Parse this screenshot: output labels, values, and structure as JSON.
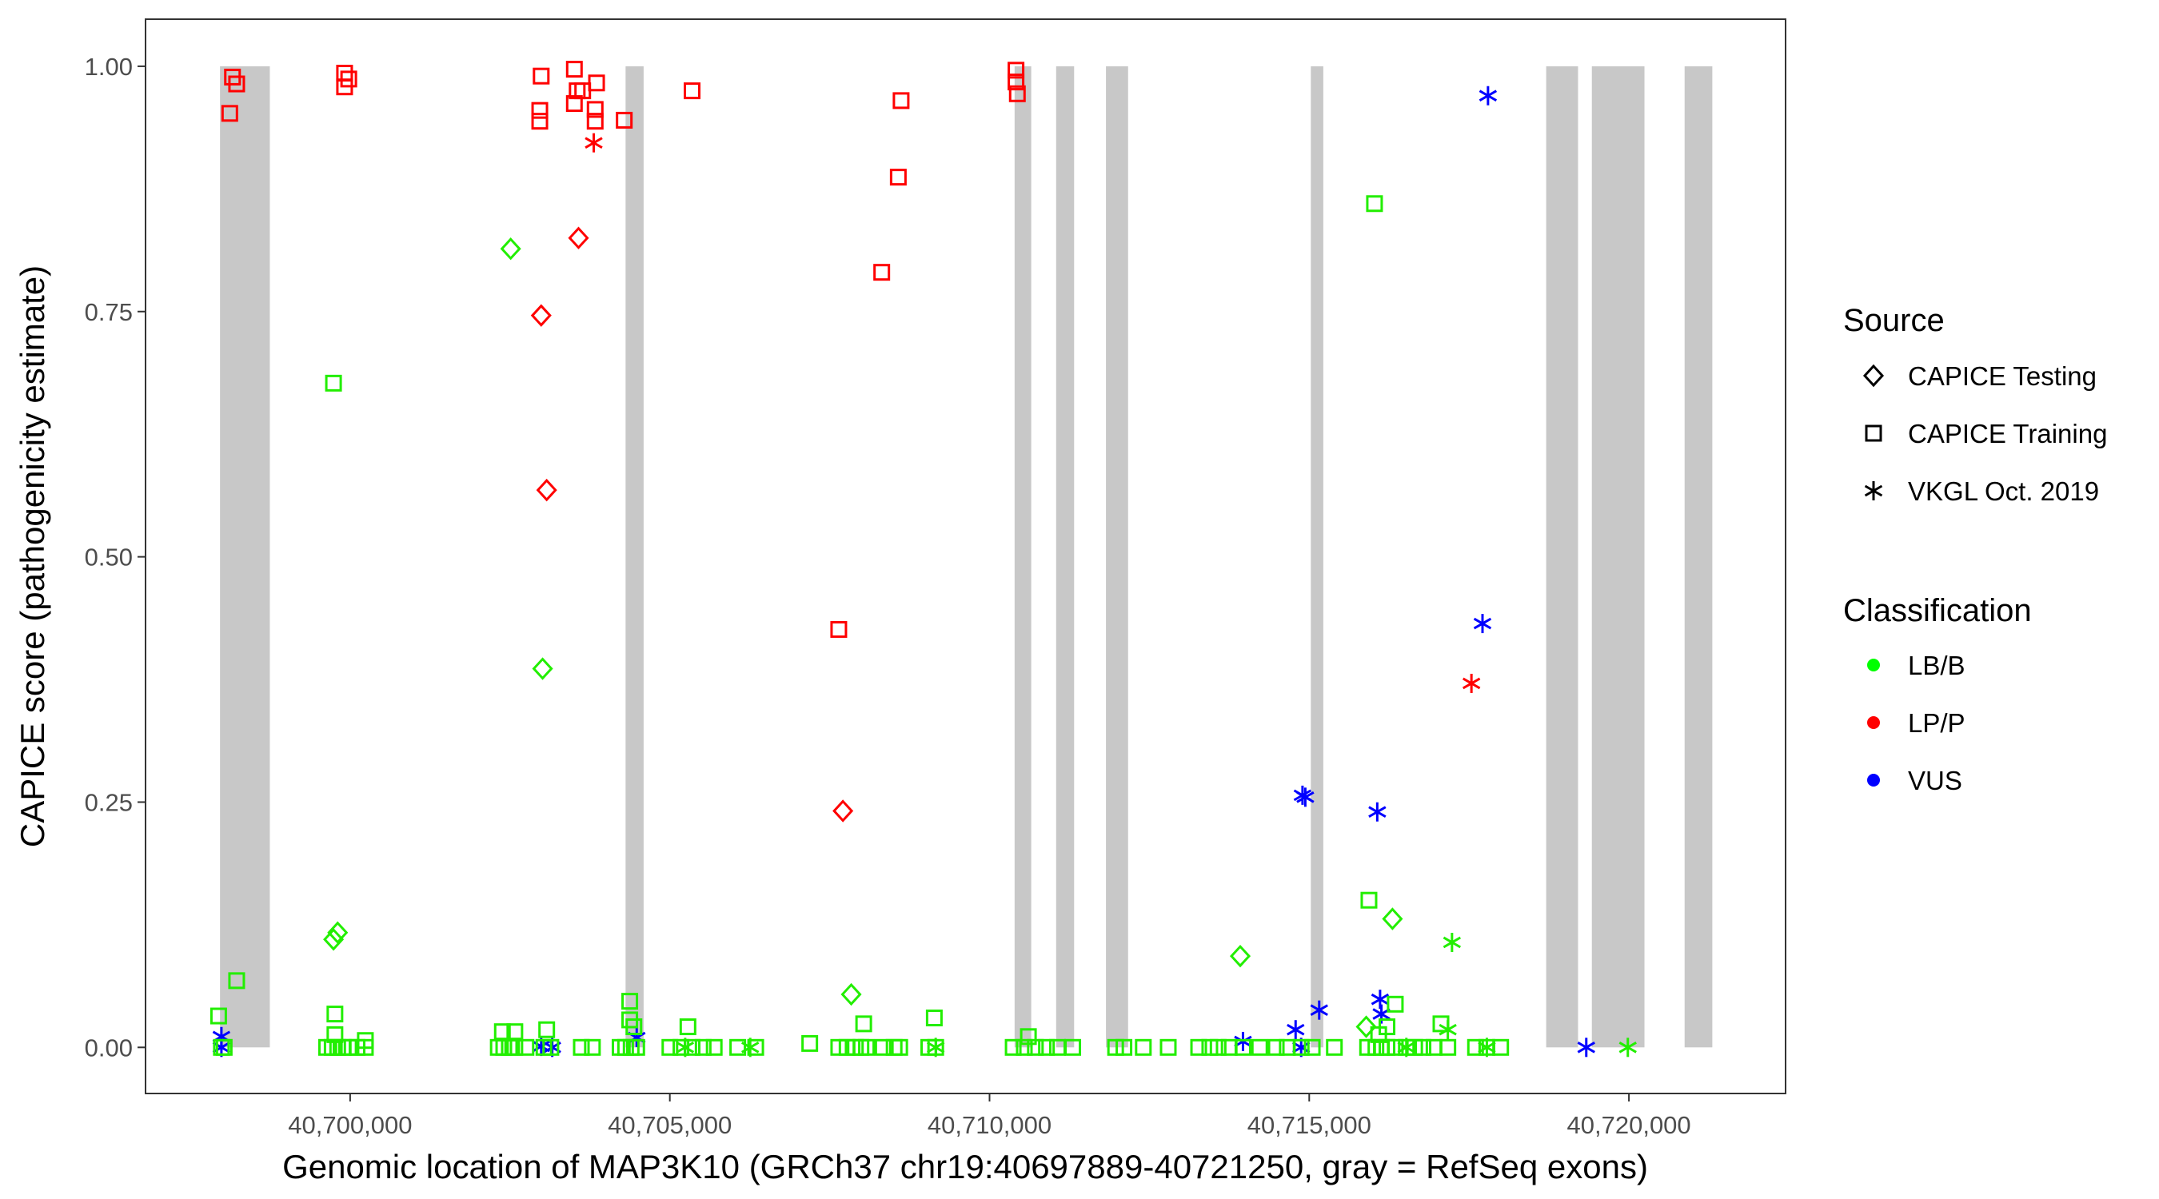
{
  "chart_data": {
    "type": "scatter",
    "title": "",
    "xlabel": "Genomic location of MAP3K10 (GRCh37 chr19:40697889-40721250, gray = RefSeq exons)",
    "ylabel": "CAPICE score (pathogenicity estimate)",
    "xlim": [
      40696800,
      40722450
    ],
    "ylim": [
      -0.047,
      1.048
    ],
    "xticks": [
      40700000,
      40705000,
      40710000,
      40715000,
      40720000
    ],
    "xtick_labels": [
      "40,700,000",
      "40,705,000",
      "40,710,000",
      "40,715,000",
      "40,720,000"
    ],
    "yticks": [
      0,
      0.25,
      0.5,
      0.75,
      1.0
    ],
    "ytick_labels": [
      "0.00",
      "0.25",
      "0.50",
      "0.75",
      "1.00"
    ],
    "grid": false,
    "exons": [
      [
        40697965,
        40698744
      ],
      [
        40704308,
        40704590
      ],
      [
        40710392,
        40710652
      ],
      [
        40711042,
        40711323
      ],
      [
        40711821,
        40712167
      ],
      [
        40715025,
        40715220
      ],
      [
        40718706,
        40719204
      ],
      [
        40719420,
        40720243
      ],
      [
        40720871,
        40721304
      ]
    ],
    "legend": {
      "placement": "right",
      "source_title": "Source",
      "source": [
        {
          "key": "testing",
          "label": "CAPICE Testing",
          "shape": "diamond"
        },
        {
          "key": "training",
          "label": "CAPICE Training",
          "shape": "square"
        },
        {
          "key": "vkgl",
          "label": "VKGL Oct. 2019",
          "shape": "asterisk"
        }
      ],
      "class_title": "Classification",
      "classes": [
        {
          "key": "LB/B",
          "label": "LB/B",
          "color": "#00FF00"
        },
        {
          "key": "LP/P",
          "label": "LP/P",
          "color": "#FF0000"
        },
        {
          "key": "VUS",
          "label": "VUS",
          "color": "#0000FF"
        }
      ]
    },
    "colors": {
      "LB/B": "#22ee00",
      "LP/P": "#ff0000",
      "VUS": "#0000ff",
      "exon": "#c8c8c8"
    },
    "points": [
      [
        40698160,
        0.989,
        "training",
        "LP/P"
      ],
      [
        40698225,
        0.982,
        "training",
        "LP/P"
      ],
      [
        40698117,
        0.952,
        "training",
        "LP/P"
      ],
      [
        40699913,
        0.993,
        "training",
        "LP/P"
      ],
      [
        40699978,
        0.987,
        "training",
        "LP/P"
      ],
      [
        40699913,
        0.979,
        "training",
        "LP/P"
      ],
      [
        40702988,
        0.99,
        "training",
        "LP/P"
      ],
      [
        40702966,
        0.955,
        "training",
        "LP/P"
      ],
      [
        40702966,
        0.944,
        "training",
        "LP/P"
      ],
      [
        40703507,
        0.997,
        "training",
        "LP/P"
      ],
      [
        40703551,
        0.975,
        "training",
        "LP/P"
      ],
      [
        40703637,
        0.975,
        "training",
        "LP/P"
      ],
      [
        40703507,
        0.962,
        "training",
        "LP/P"
      ],
      [
        40703854,
        0.983,
        "training",
        "LP/P"
      ],
      [
        40703832,
        0.956,
        "training",
        "LP/P"
      ],
      [
        40703832,
        0.944,
        "training",
        "LP/P"
      ],
      [
        40704287,
        0.945,
        "training",
        "LP/P"
      ],
      [
        40705348,
        0.975,
        "training",
        "LP/P"
      ],
      [
        40708617,
        0.965,
        "training",
        "LP/P"
      ],
      [
        40708573,
        0.887,
        "training",
        "LP/P"
      ],
      [
        40708314,
        0.79,
        "training",
        "LP/P"
      ],
      [
        40707642,
        0.426,
        "training",
        "LP/P"
      ],
      [
        40710414,
        0.996,
        "training",
        "LP/P"
      ],
      [
        40710414,
        0.984,
        "training",
        "LP/P"
      ],
      [
        40710435,
        0.972,
        "training",
        "LP/P"
      ],
      [
        40703572,
        0.825,
        "testing",
        "LP/P"
      ],
      [
        40702988,
        0.746,
        "testing",
        "LP/P"
      ],
      [
        40703074,
        0.568,
        "testing",
        "LP/P"
      ],
      [
        40707707,
        0.241,
        "testing",
        "LP/P"
      ],
      [
        40703810,
        0.922,
        "vkgl",
        "LP/P"
      ],
      [
        40717537,
        0.371,
        "vkgl",
        "LP/P"
      ],
      [
        40717796,
        0.97,
        "vkgl",
        "VUS"
      ],
      [
        40717710,
        0.432,
        "vkgl",
        "VUS"
      ],
      [
        40714895,
        0.257,
        "vkgl",
        "VUS"
      ],
      [
        40714939,
        0.255,
        "vkgl",
        "VUS"
      ],
      [
        40716064,
        0.24,
        "vkgl",
        "VUS"
      ],
      [
        40716108,
        0.049,
        "vkgl",
        "VUS"
      ],
      [
        40716129,
        0.034,
        "vkgl",
        "VUS"
      ],
      [
        40715156,
        0.038,
        "vkgl",
        "VUS"
      ],
      [
        40714787,
        0.018,
        "vkgl",
        "VUS"
      ],
      [
        40714874,
        0.0,
        "vkgl",
        "VUS"
      ],
      [
        40713964,
        0.006,
        "vkgl",
        "VUS"
      ],
      [
        40704482,
        0.01,
        "vkgl",
        "VUS"
      ],
      [
        40702988,
        0.001,
        "vkgl",
        "VUS"
      ],
      [
        40703161,
        0.0,
        "vkgl",
        "VUS"
      ],
      [
        40697987,
        0.011,
        "vkgl",
        "VUS"
      ],
      [
        40697987,
        0.0,
        "vkgl",
        "VUS"
      ],
      [
        40719333,
        0.0,
        "vkgl",
        "VUS"
      ],
      [
        40716021,
        0.86,
        "training",
        "LB/B"
      ],
      [
        40699740,
        0.677,
        "training",
        "LB/B"
      ],
      [
        40715934,
        0.15,
        "training",
        "LB/B"
      ],
      [
        40698225,
        0.068,
        "training",
        "LB/B"
      ],
      [
        40699762,
        0.034,
        "training",
        "LB/B"
      ],
      [
        40697943,
        0.032,
        "training",
        "LB/B"
      ],
      [
        40704373,
        0.047,
        "training",
        "LB/B"
      ],
      [
        40704373,
        0.028,
        "training",
        "LB/B"
      ],
      [
        40704438,
        0.021,
        "training",
        "LB/B"
      ],
      [
        40705283,
        0.021,
        "training",
        "LB/B"
      ],
      [
        40708032,
        0.024,
        "training",
        "LB/B"
      ],
      [
        40709136,
        0.03,
        "training",
        "LB/B"
      ],
      [
        40716346,
        0.044,
        "training",
        "LB/B"
      ],
      [
        40717060,
        0.024,
        "training",
        "LB/B"
      ],
      [
        40710608,
        0.011,
        "training",
        "LB/B"
      ],
      [
        40702381,
        0.016,
        "training",
        "LB/B"
      ],
      [
        40702576,
        0.016,
        "training",
        "LB/B"
      ],
      [
        40703074,
        0.018,
        "training",
        "LB/B"
      ],
      [
        40716216,
        0.021,
        "training",
        "LB/B"
      ],
      [
        40716086,
        0.013,
        "training",
        "LB/B"
      ],
      [
        40700238,
        0.007,
        "training",
        "LB/B"
      ],
      [
        40707188,
        0.004,
        "training",
        "LB/B"
      ],
      [
        40699762,
        0.013,
        "training",
        "LB/B"
      ],
      [
        40697987,
        0,
        "training",
        "LB/B"
      ],
      [
        40698030,
        0,
        "training",
        "LB/B"
      ],
      [
        40699632,
        0,
        "training",
        "LB/B"
      ],
      [
        40699719,
        0,
        "training",
        "LB/B"
      ],
      [
        40699805,
        0,
        "training",
        "LB/B"
      ],
      [
        40699892,
        0,
        "training",
        "LB/B"
      ],
      [
        40699978,
        0,
        "training",
        "LB/B"
      ],
      [
        40700108,
        0,
        "training",
        "LB/B"
      ],
      [
        40700238,
        0,
        "training",
        "LB/B"
      ],
      [
        40702317,
        0,
        "training",
        "LB/B"
      ],
      [
        40702403,
        0,
        "training",
        "LB/B"
      ],
      [
        40702490,
        0,
        "training",
        "LB/B"
      ],
      [
        40702576,
        0,
        "training",
        "LB/B"
      ],
      [
        40702750,
        0,
        "training",
        "LB/B"
      ],
      [
        40703031,
        0,
        "training",
        "LB/B"
      ],
      [
        40703139,
        0,
        "training",
        "LB/B"
      ],
      [
        40703616,
        0,
        "training",
        "LB/B"
      ],
      [
        40703789,
        0,
        "training",
        "LB/B"
      ],
      [
        40704222,
        0,
        "training",
        "LB/B"
      ],
      [
        40704308,
        0,
        "training",
        "LB/B"
      ],
      [
        40704395,
        0,
        "training",
        "LB/B"
      ],
      [
        40704482,
        0,
        "training",
        "LB/B"
      ],
      [
        40705001,
        0,
        "training",
        "LB/B"
      ],
      [
        40705174,
        0,
        "training",
        "LB/B"
      ],
      [
        40705348,
        0,
        "training",
        "LB/B"
      ],
      [
        40705521,
        0,
        "training",
        "LB/B"
      ],
      [
        40705694,
        0,
        "training",
        "LB/B"
      ],
      [
        40706062,
        0,
        "training",
        "LB/B"
      ],
      [
        40706343,
        0,
        "training",
        "LB/B"
      ],
      [
        40707642,
        0,
        "training",
        "LB/B"
      ],
      [
        40707772,
        0,
        "training",
        "LB/B"
      ],
      [
        40707902,
        0,
        "training",
        "LB/B"
      ],
      [
        40707989,
        0,
        "training",
        "LB/B"
      ],
      [
        40708075,
        0,
        "training",
        "LB/B"
      ],
      [
        40708335,
        0,
        "training",
        "LB/B"
      ],
      [
        40708508,
        0,
        "training",
        "LB/B"
      ],
      [
        40708595,
        0,
        "training",
        "LB/B"
      ],
      [
        40709050,
        0,
        "training",
        "LB/B"
      ],
      [
        40709158,
        0,
        "training",
        "LB/B"
      ],
      [
        40710370,
        0,
        "training",
        "LB/B"
      ],
      [
        40710544,
        0,
        "training",
        "LB/B"
      ],
      [
        40710717,
        0,
        "training",
        "LB/B"
      ],
      [
        40710890,
        0,
        "training",
        "LB/B"
      ],
      [
        40711063,
        0,
        "training",
        "LB/B"
      ],
      [
        40711301,
        0,
        "training",
        "LB/B"
      ],
      [
        40711972,
        0,
        "training",
        "LB/B"
      ],
      [
        40712102,
        0,
        "training",
        "LB/B"
      ],
      [
        40712405,
        0,
        "training",
        "LB/B"
      ],
      [
        40712795,
        0,
        "training",
        "LB/B"
      ],
      [
        40713271,
        0,
        "training",
        "LB/B"
      ],
      [
        40713445,
        0,
        "training",
        "LB/B"
      ],
      [
        40713575,
        0,
        "training",
        "LB/B"
      ],
      [
        40713748,
        0,
        "training",
        "LB/B"
      ],
      [
        40713964,
        0,
        "training",
        "LB/B"
      ],
      [
        40714224,
        0,
        "training",
        "LB/B"
      ],
      [
        40714484,
        0,
        "training",
        "LB/B"
      ],
      [
        40714657,
        0,
        "training",
        "LB/B"
      ],
      [
        40714874,
        0,
        "training",
        "LB/B"
      ],
      [
        40715047,
        0,
        "training",
        "LB/B"
      ],
      [
        40715393,
        0,
        "training",
        "LB/B"
      ],
      [
        40715913,
        0,
        "training",
        "LB/B"
      ],
      [
        40716043,
        0,
        "training",
        "LB/B"
      ],
      [
        40716129,
        0,
        "training",
        "LB/B"
      ],
      [
        40716216,
        0,
        "training",
        "LB/B"
      ],
      [
        40716346,
        0,
        "training",
        "LB/B"
      ],
      [
        40716519,
        0,
        "training",
        "LB/B"
      ],
      [
        40716649,
        0,
        "training",
        "LB/B"
      ],
      [
        40716779,
        0,
        "training",
        "LB/B"
      ],
      [
        40716952,
        0,
        "training",
        "LB/B"
      ],
      [
        40717168,
        0,
        "training",
        "LB/B"
      ],
      [
        40717601,
        0,
        "training",
        "LB/B"
      ],
      [
        40717778,
        0,
        "training",
        "LB/B"
      ],
      [
        40717994,
        0,
        "training",
        "LB/B"
      ],
      [
        40702511,
        0.814,
        "testing",
        "LB/B"
      ],
      [
        40703010,
        0.386,
        "testing",
        "LB/B"
      ],
      [
        40699805,
        0.117,
        "testing",
        "LB/B"
      ],
      [
        40699740,
        0.11,
        "testing",
        "LB/B"
      ],
      [
        40707837,
        0.054,
        "testing",
        "LB/B"
      ],
      [
        40713921,
        0.093,
        "testing",
        "LB/B"
      ],
      [
        40716302,
        0.131,
        "testing",
        "LB/B"
      ],
      [
        40715891,
        0.021,
        "testing",
        "LB/B"
      ],
      [
        40717233,
        0.107,
        "vkgl",
        "LB/B"
      ],
      [
        40717168,
        0.018,
        "vkgl",
        "LB/B"
      ],
      [
        40719983,
        0.0,
        "vkgl",
        "LB/B"
      ],
      [
        40709158,
        0.0,
        "vkgl",
        "LB/B"
      ],
      [
        40706257,
        0.0,
        "vkgl",
        "LB/B"
      ],
      [
        40705240,
        0.0,
        "vkgl",
        "LB/B"
      ],
      [
        40716519,
        0.0,
        "vkgl",
        "LB/B"
      ],
      [
        40717778,
        0.0,
        "vkgl",
        "LB/B"
      ]
    ]
  }
}
